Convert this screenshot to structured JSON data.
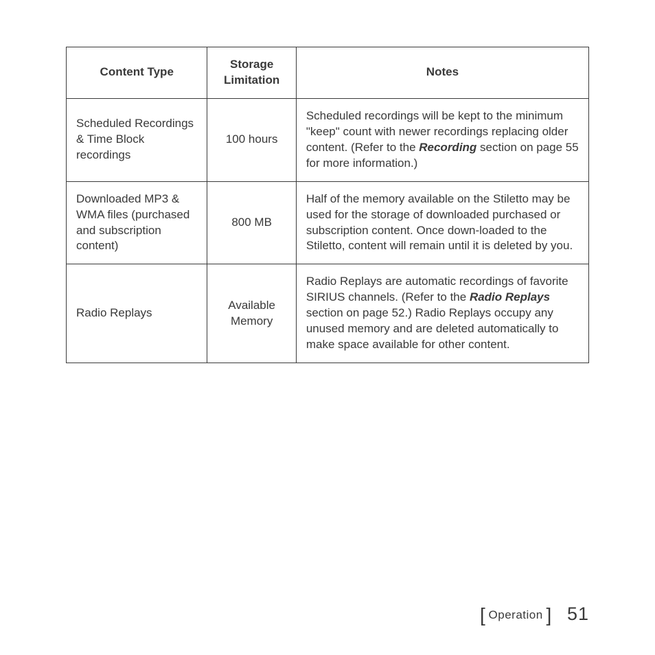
{
  "table": {
    "headers": {
      "col1": "Content Type",
      "col2_line1": "Storage",
      "col2_line2": "Limitation",
      "col3": "Notes"
    },
    "rows": {
      "r1": {
        "contentType": "Scheduled Recordings & Time Block recordings",
        "storage": "100 hours",
        "notes_a": "Scheduled recordings will be kept to the minimum \"keep\" count with newer recordings replacing older content. (Refer to the ",
        "notes_bi": "Recording",
        "notes_b": " section on page 55 for more information.)"
      },
      "r2": {
        "contentType": "Downloaded MP3 & WMA files (purchased and subscription content)",
        "storage": "800 MB",
        "notes": "Half of the memory available on the Stiletto may be used for the storage of downloaded purchased or subscription content. Once down-loaded to the Stiletto, content will remain until it is deleted by you."
      },
      "r3": {
        "contentType": "Radio Replays",
        "storage_line1": "Available",
        "storage_line2": "Memory",
        "notes_a": "Radio Replays are automatic recordings of favorite SIRIUS channels. (Refer to the ",
        "notes_bi": "Radio Replays",
        "notes_b": " section on page 52.) Radio Replays occupy any unused memory and are deleted automatically to make space available for other content."
      }
    }
  },
  "footer": {
    "section": "Operation",
    "page": "51"
  }
}
